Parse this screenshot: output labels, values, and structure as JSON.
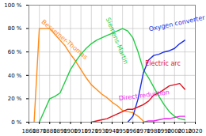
{
  "chart_data": {
    "type": "line",
    "x": [
      1860,
      1865,
      1870,
      1875,
      1880,
      1885,
      1890,
      1895,
      1900,
      1905,
      1910,
      1915,
      1920,
      1925,
      1930,
      1935,
      1940,
      1945,
      1950,
      1955,
      1960,
      1965,
      1970,
      1975,
      1980,
      1985,
      1990,
      1995,
      2000,
      2005,
      2010
    ],
    "series": [
      {
        "name": "Bessemer-Thomas",
        "color": "#ff8c1a",
        "values": [
          null,
          0,
          80,
          80,
          80,
          75,
          70,
          65,
          58,
          52,
          45,
          38,
          32,
          28,
          24,
          21,
          17,
          14,
          10,
          9,
          8,
          5,
          1,
          null,
          null,
          null,
          null,
          null,
          null,
          null,
          null
        ]
      },
      {
        "name": "Siemens-Martin",
        "color": "#22cc44",
        "values": [
          null,
          null,
          0,
          10,
          20,
          22,
          25,
          35,
          45,
          52,
          58,
          63,
          67,
          70,
          72,
          74,
          76,
          78,
          80,
          78,
          72,
          60,
          45,
          38,
          30,
          22,
          15,
          9,
          5,
          3,
          2
        ]
      },
      {
        "name": "Oxygen converter",
        "color": "#1a2ee6",
        "values": [
          null,
          null,
          null,
          null,
          null,
          null,
          null,
          null,
          null,
          null,
          null,
          null,
          null,
          null,
          null,
          null,
          null,
          null,
          null,
          0,
          5,
          20,
          42,
          53,
          57,
          58,
          60,
          61,
          63,
          67,
          70
        ]
      },
      {
        "name": "Electric arc",
        "color": "#e0101e",
        "values": [
          null,
          null,
          null,
          null,
          null,
          null,
          null,
          null,
          null,
          null,
          null,
          null,
          0,
          1,
          2,
          3,
          5,
          7,
          9,
          11,
          11,
          13,
          15,
          18,
          23,
          25,
          28,
          31,
          32,
          33,
          28
        ]
      },
      {
        "name": "Direct reduction",
        "color": "#ee22ee",
        "values": [
          null,
          null,
          null,
          null,
          null,
          null,
          null,
          null,
          null,
          null,
          null,
          null,
          null,
          null,
          null,
          null,
          null,
          null,
          null,
          null,
          null,
          null,
          0,
          1,
          1,
          2,
          3,
          3,
          4,
          5,
          5
        ]
      }
    ],
    "xlim": [
      1860,
      2020
    ],
    "xticks": [
      1860,
      1870,
      1880,
      1890,
      1900,
      1910,
      1920,
      1930,
      1940,
      1950,
      1960,
      1970,
      1980,
      1990,
      2000,
      2010,
      2020
    ],
    "ylim": [
      0,
      100
    ],
    "yticks": [
      {
        "value": 0,
        "label": "0 %"
      },
      {
        "value": 20,
        "label": "20 %"
      },
      {
        "value": 40,
        "label": "40 %"
      },
      {
        "value": 60,
        "label": "60 %"
      },
      {
        "value": 80,
        "label": "80 %"
      },
      {
        "value": 100,
        "label": "100 %"
      }
    ],
    "grid": true
  }
}
